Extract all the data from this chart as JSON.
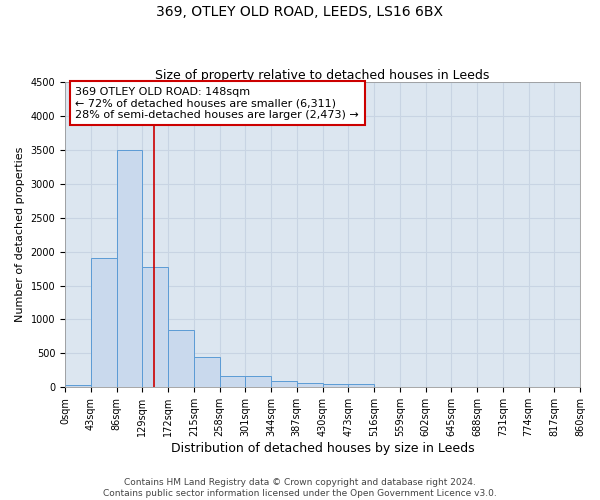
{
  "title": "369, OTLEY OLD ROAD, LEEDS, LS16 6BX",
  "subtitle": "Size of property relative to detached houses in Leeds",
  "xlabel": "Distribution of detached houses by size in Leeds",
  "ylabel": "Number of detached properties",
  "bin_edges": [
    0,
    43,
    86,
    129,
    172,
    215,
    258,
    301,
    344,
    387,
    430,
    473,
    516,
    559,
    602,
    645,
    688,
    731,
    774,
    817,
    860
  ],
  "bar_heights": [
    40,
    1900,
    3500,
    1780,
    850,
    450,
    165,
    160,
    90,
    65,
    55,
    50,
    0,
    0,
    0,
    0,
    0,
    0,
    0,
    0
  ],
  "bar_color": "#c9d9ed",
  "bar_edge_color": "#5b9bd5",
  "property_size": 148,
  "vline_color": "#cc0000",
  "annotation_text": "369 OTLEY OLD ROAD: 148sqm\n← 72% of detached houses are smaller (6,311)\n28% of semi-detached houses are larger (2,473) →",
  "annotation_box_color": "#cc0000",
  "annotation_text_color": "#000000",
  "ylim": [
    0,
    4500
  ],
  "yticks": [
    0,
    500,
    1000,
    1500,
    2000,
    2500,
    3000,
    3500,
    4000,
    4500
  ],
  "grid_color": "#c8d4e3",
  "bg_color": "#dce6f0",
  "fig_bg_color": "#ffffff",
  "footer_line1": "Contains HM Land Registry data © Crown copyright and database right 2024.",
  "footer_line2": "Contains public sector information licensed under the Open Government Licence v3.0.",
  "title_fontsize": 10,
  "subtitle_fontsize": 9,
  "tick_fontsize": 7,
  "ylabel_fontsize": 8,
  "xlabel_fontsize": 9,
  "annotation_fontsize": 8,
  "footer_fontsize": 6.5
}
